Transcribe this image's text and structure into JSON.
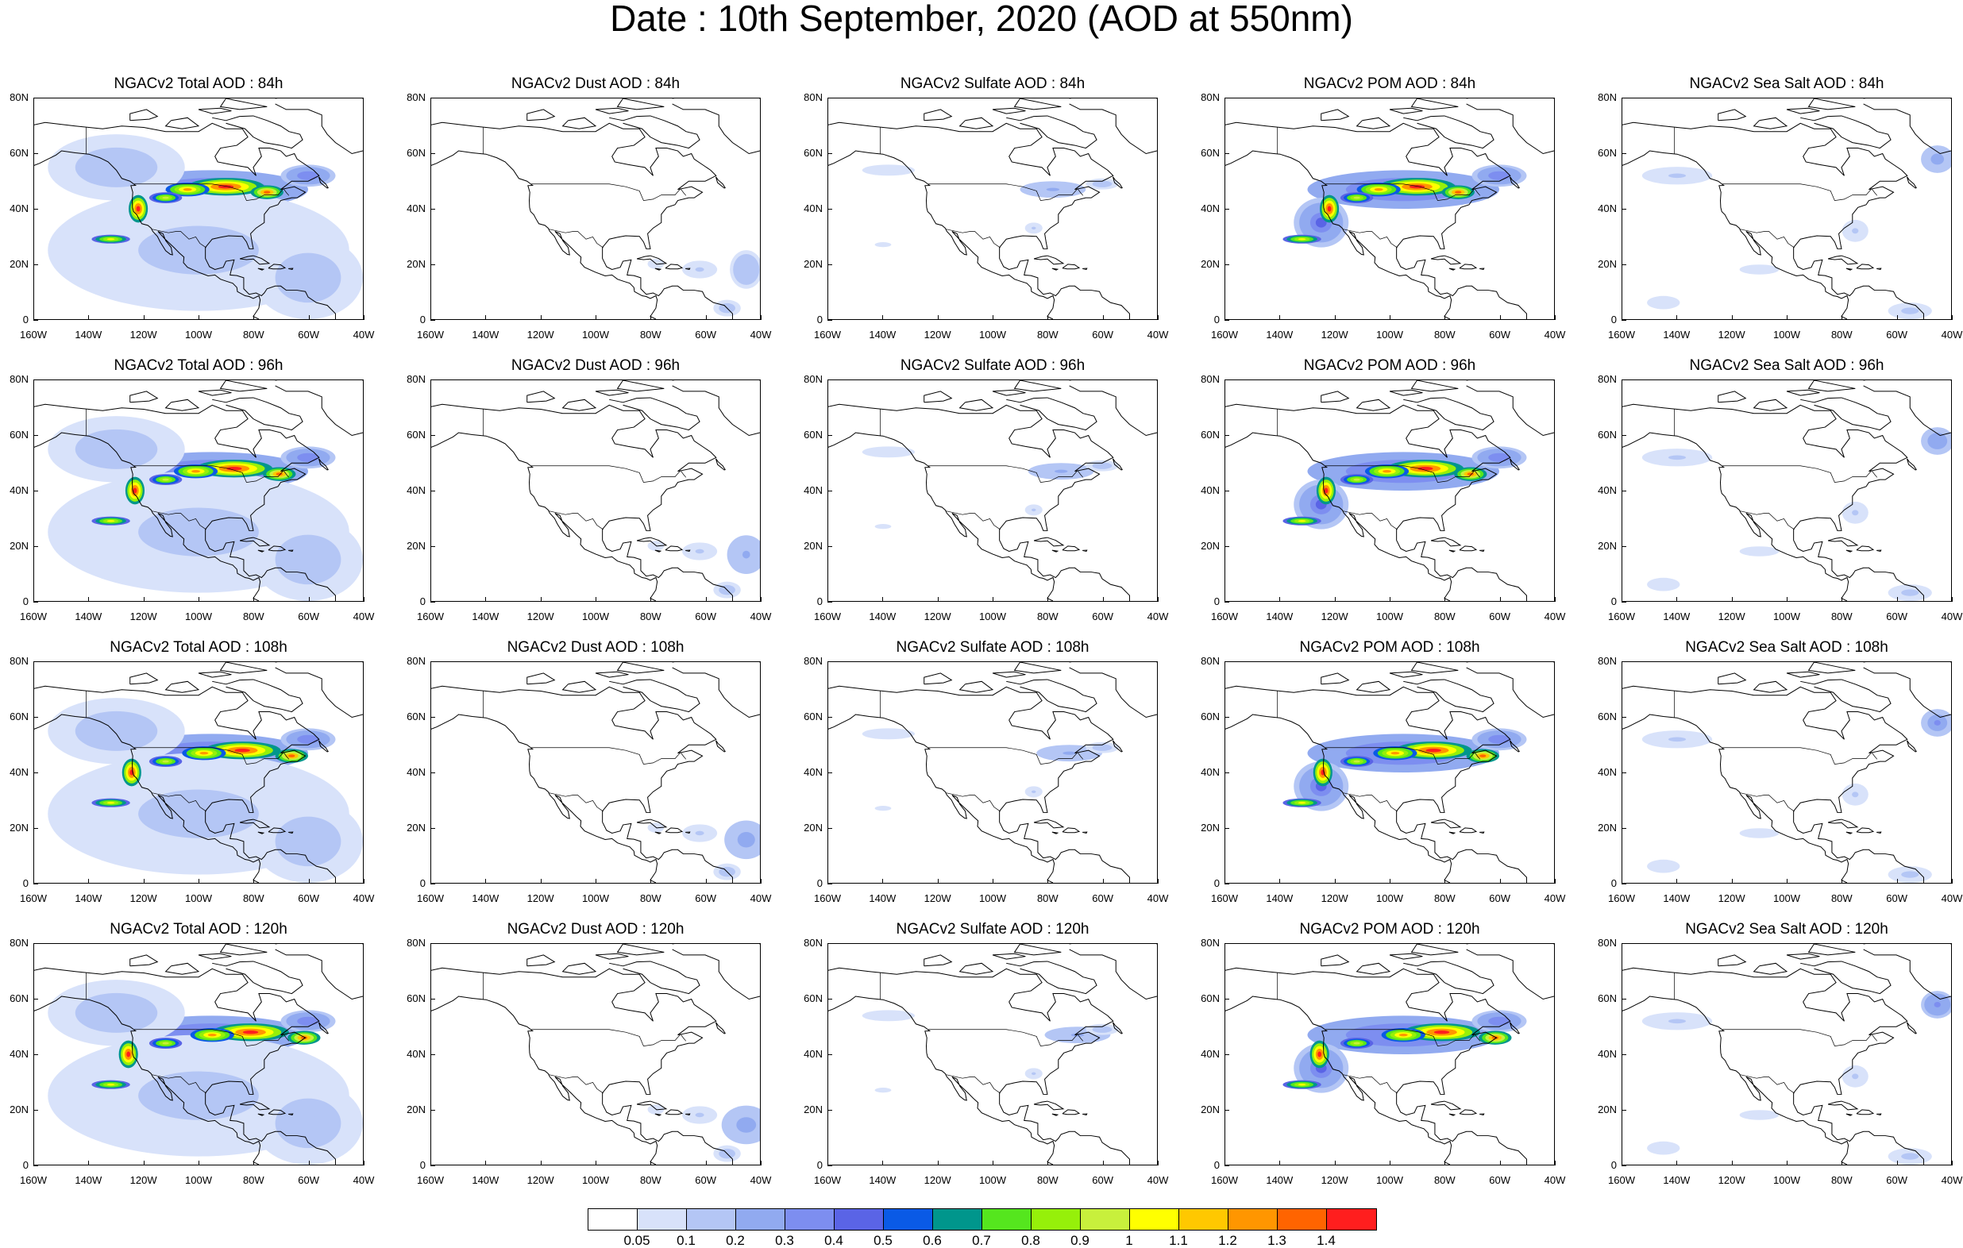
{
  "title": "Date : 10th September, 2020 (AOD at 550nm)",
  "axis": {
    "lat_labels": [
      "80N",
      "60N",
      "40N",
      "20N",
      "0"
    ],
    "lon_labels": [
      "160W",
      "140W",
      "120W",
      "100W",
      "80W",
      "60W",
      "40W"
    ]
  },
  "rows": [
    {
      "hour": "84h",
      "panels": [
        {
          "title": "NGACv2 Total AOD : 84h",
          "type": "total"
        },
        {
          "title": "NGACv2 Dust AOD : 84h",
          "type": "dust"
        },
        {
          "title": "NGACv2 Sulfate AOD : 84h",
          "type": "sulfate"
        },
        {
          "title": "NGACv2 POM AOD : 84h",
          "type": "pom"
        },
        {
          "title": "NGACv2 Sea Salt AOD : 84h",
          "type": "seasalt"
        }
      ]
    },
    {
      "hour": "96h",
      "panels": [
        {
          "title": "NGACv2 Total AOD : 96h",
          "type": "total"
        },
        {
          "title": "NGACv2 Dust AOD : 96h",
          "type": "dust"
        },
        {
          "title": "NGACv2 Sulfate AOD : 96h",
          "type": "sulfate"
        },
        {
          "title": "NGACv2 POM AOD : 96h",
          "type": "pom"
        },
        {
          "title": "NGACv2 Sea Salt AOD : 96h",
          "type": "seasalt"
        }
      ]
    },
    {
      "hour": "108h",
      "panels": [
        {
          "title": "NGACv2 Total AOD : 108h",
          "type": "total"
        },
        {
          "title": "NGACv2 Dust AOD : 108h",
          "type": "dust"
        },
        {
          "title": "NGACv2 Sulfate AOD : 108h",
          "type": "sulfate"
        },
        {
          "title": "NGACv2 POM AOD : 108h",
          "type": "pom"
        },
        {
          "title": "NGACv2 Sea Salt AOD : 108h",
          "type": "seasalt"
        }
      ]
    },
    {
      "hour": "120h",
      "panels": [
        {
          "title": "NGACv2 Total AOD : 120h",
          "type": "total"
        },
        {
          "title": "NGACv2 Dust AOD : 120h",
          "type": "dust"
        },
        {
          "title": "NGACv2 Sulfate AOD : 120h",
          "type": "sulfate"
        },
        {
          "title": "NGACv2 POM AOD : 120h",
          "type": "pom"
        },
        {
          "title": "NGACv2 Sea Salt  AOD : 120h",
          "type": "seasalt"
        }
      ]
    }
  ],
  "colorbar": {
    "labels": [
      "0.05",
      "0.1",
      "0.2",
      "0.3",
      "0.4",
      "0.5",
      "0.6",
      "0.7",
      "0.8",
      "0.9",
      "1",
      "1.1",
      "1.2",
      "1.3",
      "1.4"
    ],
    "colors": [
      "#ffffff",
      "#d8e2fa",
      "#b4c6f5",
      "#91aaf0",
      "#7d8ef0",
      "#5a64e6",
      "#0a5ae6",
      "#00968c",
      "#55e61e",
      "#96f00a",
      "#c8f03c",
      "#ffff00",
      "#ffc800",
      "#ff9600",
      "#ff6400",
      "#ff1e1e"
    ]
  }
}
